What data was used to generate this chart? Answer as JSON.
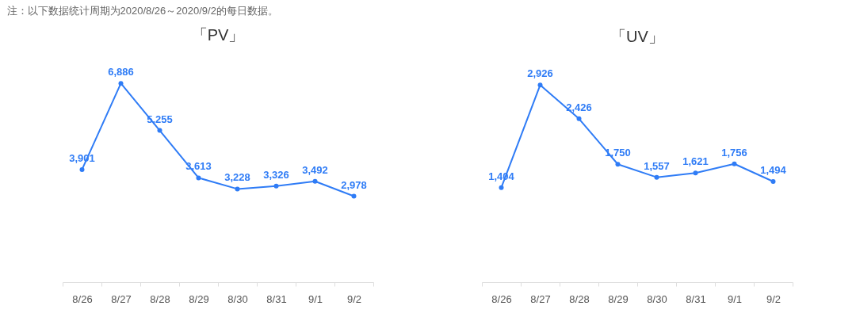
{
  "chart_data": [
    {
      "type": "line",
      "title": "「PV」",
      "categories": [
        "8/26",
        "8/27",
        "8/28",
        "8/29",
        "8/30",
        "8/31",
        "9/1",
        "9/2"
      ],
      "series": [
        {
          "color": "#2f7cf6",
          "values": [
            3901,
            6886,
            5255,
            3613,
            3228,
            3326,
            3492,
            2978
          ],
          "value_labels": [
            "3,901",
            "6,886",
            "5,255",
            "3,613",
            "3,228",
            "3,326",
            "3,492",
            "2,978"
          ]
        }
      ],
      "marker": "circle",
      "grid": false,
      "legend": false,
      "tick_labels": "x",
      "annotations": [
        "注：以下数据统计周期为2020/8/26～2020/9/2的每日数据。"
      ]
    },
    {
      "type": "line",
      "title": "「UV」",
      "categories": [
        "8/26",
        "8/27",
        "8/28",
        "8/29",
        "8/30",
        "8/31",
        "9/1",
        "9/2"
      ],
      "series": [
        {
          "color": "#2f7cf6",
          "values": [
            1404,
            2926,
            2426,
            1750,
            1557,
            1621,
            1756,
            1494
          ],
          "value_labels": [
            "1,404",
            "2,926",
            "2,426",
            "1,750",
            "1,557",
            "1,621",
            "1,756",
            "1,494"
          ]
        }
      ],
      "marker": "circle",
      "grid": false,
      "legend": false,
      "tick_labels": "x"
    }
  ]
}
